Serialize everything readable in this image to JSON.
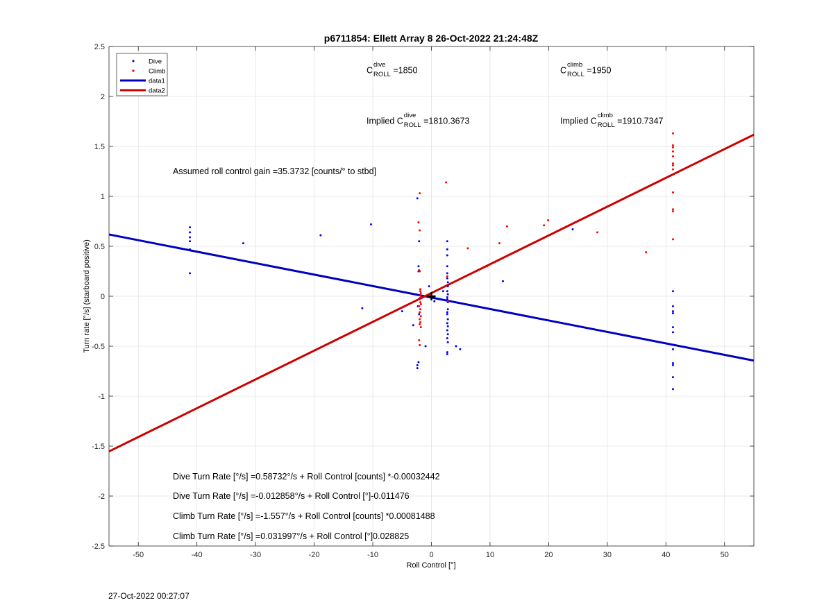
{
  "chart_data": {
    "type": "scatter",
    "title": "p6711854: Ellett Array 8 26-Oct-2022 21:24:48Z",
    "xlabel": "Roll Control [°]",
    "ylabel": "Turn rate [°/s] (starboard positive)",
    "xlim": [
      -55,
      55
    ],
    "ylim": [
      -2.5,
      2.5
    ],
    "xticks": [
      -50,
      -40,
      -30,
      -20,
      -10,
      0,
      10,
      20,
      30,
      40,
      50
    ],
    "yticks": [
      -2.5,
      -2,
      -1.5,
      -1,
      -0.5,
      0,
      0.5,
      1,
      1.5,
      2,
      2.5
    ],
    "grid": true,
    "legend_position": "top-left",
    "legend": [
      "Dive",
      "Climb",
      "data1",
      "data2"
    ],
    "colors": {
      "dive": "#0000ff",
      "climb": "#ff0000",
      "data1": "#0000c0",
      "data2": "#cc0000"
    },
    "series": [
      {
        "name": "Dive",
        "kind": "points",
        "points": [
          [
            -41.2,
            0.69
          ],
          [
            -41.2,
            0.64
          ],
          [
            -41.2,
            0.59
          ],
          [
            -41.2,
            0.55
          ],
          [
            -41.2,
            0.47
          ],
          [
            -41.2,
            0.23
          ],
          [
            -32.1,
            0.53
          ],
          [
            -18.9,
            0.61
          ],
          [
            -10.3,
            0.72
          ],
          [
            -11.8,
            -0.12
          ],
          [
            -5.0,
            -0.15
          ],
          [
            -2.4,
            0.98
          ],
          [
            -2.1,
            0.55
          ],
          [
            -2.2,
            0.3
          ],
          [
            -2.2,
            0.25
          ],
          [
            -2.0,
            -0.02
          ],
          [
            -2.3,
            -0.1
          ],
          [
            -2.1,
            -0.18
          ],
          [
            -3.1,
            -0.29
          ],
          [
            -2.2,
            -0.66
          ],
          [
            -2.4,
            -0.69
          ],
          [
            -2.4,
            -0.72
          ],
          [
            -1.0,
            -0.5
          ],
          [
            -0.4,
            0.1
          ],
          [
            0.5,
            -0.05
          ],
          [
            1.5,
            -0.03
          ],
          [
            2.0,
            0.05
          ],
          [
            2.7,
            0.55
          ],
          [
            2.7,
            0.47
          ],
          [
            2.7,
            0.41
          ],
          [
            2.7,
            0.3
          ],
          [
            2.7,
            0.23
          ],
          [
            2.7,
            0.18
          ],
          [
            2.8,
            0.14
          ],
          [
            2.8,
            0.1
          ],
          [
            2.7,
            0.05
          ],
          [
            2.8,
            0.02
          ],
          [
            2.7,
            -0.01
          ],
          [
            2.7,
            -0.03
          ],
          [
            2.8,
            -0.06
          ],
          [
            2.8,
            -0.13
          ],
          [
            2.7,
            -0.16
          ],
          [
            2.7,
            -0.18
          ],
          [
            2.8,
            -0.23
          ],
          [
            2.7,
            -0.27
          ],
          [
            2.8,
            -0.3
          ],
          [
            2.7,
            -0.34
          ],
          [
            2.8,
            -0.38
          ],
          [
            2.7,
            -0.42
          ],
          [
            2.8,
            -0.46
          ],
          [
            2.7,
            -0.56
          ],
          [
            2.7,
            -0.58
          ],
          [
            4.1,
            -0.06
          ],
          [
            4.2,
            -0.5
          ],
          [
            4.9,
            -0.53
          ],
          [
            12.2,
            0.15
          ],
          [
            24.1,
            0.67
          ],
          [
            41.2,
            0.05
          ],
          [
            41.2,
            -0.1
          ],
          [
            41.2,
            -0.15
          ],
          [
            41.2,
            -0.17
          ],
          [
            41.2,
            -0.31
          ],
          [
            41.2,
            -0.36
          ],
          [
            41.2,
            -0.53
          ],
          [
            41.2,
            -0.67
          ],
          [
            41.2,
            -0.69
          ],
          [
            41.2,
            -0.81
          ],
          [
            41.2,
            -0.93
          ]
        ]
      },
      {
        "name": "Climb",
        "kind": "points",
        "points": [
          [
            -2.0,
            1.03
          ],
          [
            -2.2,
            0.74
          ],
          [
            -2.0,
            0.66
          ],
          [
            -2.1,
            0.26
          ],
          [
            -2.0,
            0.25
          ],
          [
            -1.9,
            0.07
          ],
          [
            -1.9,
            0.05
          ],
          [
            -1.8,
            0.03
          ],
          [
            -1.9,
            0.01
          ],
          [
            -1.8,
            -0.01
          ],
          [
            -2.0,
            -0.03
          ],
          [
            -1.9,
            -0.06
          ],
          [
            -1.8,
            -0.08
          ],
          [
            -2.1,
            -0.1
          ],
          [
            -1.9,
            -0.13
          ],
          [
            -2.0,
            -0.16
          ],
          [
            -1.8,
            -0.2
          ],
          [
            -2.0,
            -0.23
          ],
          [
            -1.9,
            -0.26
          ],
          [
            -2.0,
            -0.28
          ],
          [
            -1.8,
            -0.31
          ],
          [
            -2.1,
            -0.44
          ],
          [
            -2.0,
            -0.49
          ],
          [
            2.5,
            1.14
          ],
          [
            2.7,
            0.2
          ],
          [
            2.8,
            -0.05
          ],
          [
            6.2,
            0.48
          ],
          [
            9.5,
            0.3
          ],
          [
            11.6,
            0.53
          ],
          [
            12.9,
            0.7
          ],
          [
            19.2,
            0.71
          ],
          [
            19.9,
            0.76
          ],
          [
            28.3,
            0.64
          ],
          [
            36.6,
            0.44
          ],
          [
            41.2,
            1.63
          ],
          [
            41.2,
            1.51
          ],
          [
            41.2,
            1.49
          ],
          [
            41.2,
            1.45
          ],
          [
            41.2,
            1.4
          ],
          [
            41.2,
            1.33
          ],
          [
            41.2,
            1.31
          ],
          [
            41.2,
            1.27
          ],
          [
            41.2,
            1.04
          ],
          [
            41.2,
            0.87
          ],
          [
            41.2,
            0.85
          ],
          [
            41.2,
            0.57
          ]
        ]
      },
      {
        "name": "data1",
        "kind": "line",
        "intercept": -0.012858,
        "slope": -0.011476
      },
      {
        "name": "data2",
        "kind": "line",
        "intercept": 0.031997,
        "slope": 0.028825
      }
    ],
    "marker": {
      "x": 0,
      "y": 0,
      "symbol": "+"
    },
    "annotations": {
      "c_dive": {
        "base": "C",
        "sup": "dive",
        "sub": "ROLL",
        "suffix": " =1850"
      },
      "c_climb": {
        "base": "C",
        "sup": "climb",
        "sub": "ROLL",
        "suffix": " =1950"
      },
      "implied_dive": {
        "prefix": "Implied C",
        "sup": "dive",
        "sub": "ROLL",
        "suffix": " =1810.3673"
      },
      "implied_climb": {
        "prefix": "Implied C",
        "sup": "climb",
        "sub": "ROLL",
        "suffix": " =1910.7347"
      },
      "gain": "Assumed roll control gain =35.3732 [counts/° to stbd]",
      "eq1": "Dive Turn Rate [°/s] =0.58732°/s + Roll Control [counts] *-0.00032442",
      "eq2": "Dive Turn Rate [°/s] =-0.012858°/s + Roll Control [°]-0.011476",
      "eq3": "Climb Turn Rate [°/s] =-1.557°/s + Roll Control [counts] *0.00081488",
      "eq4": "Climb Turn Rate [°/s] =0.031997°/s + Roll Control [°]0.028825"
    }
  },
  "timestamp": "27-Oct-2022 00:27:07"
}
